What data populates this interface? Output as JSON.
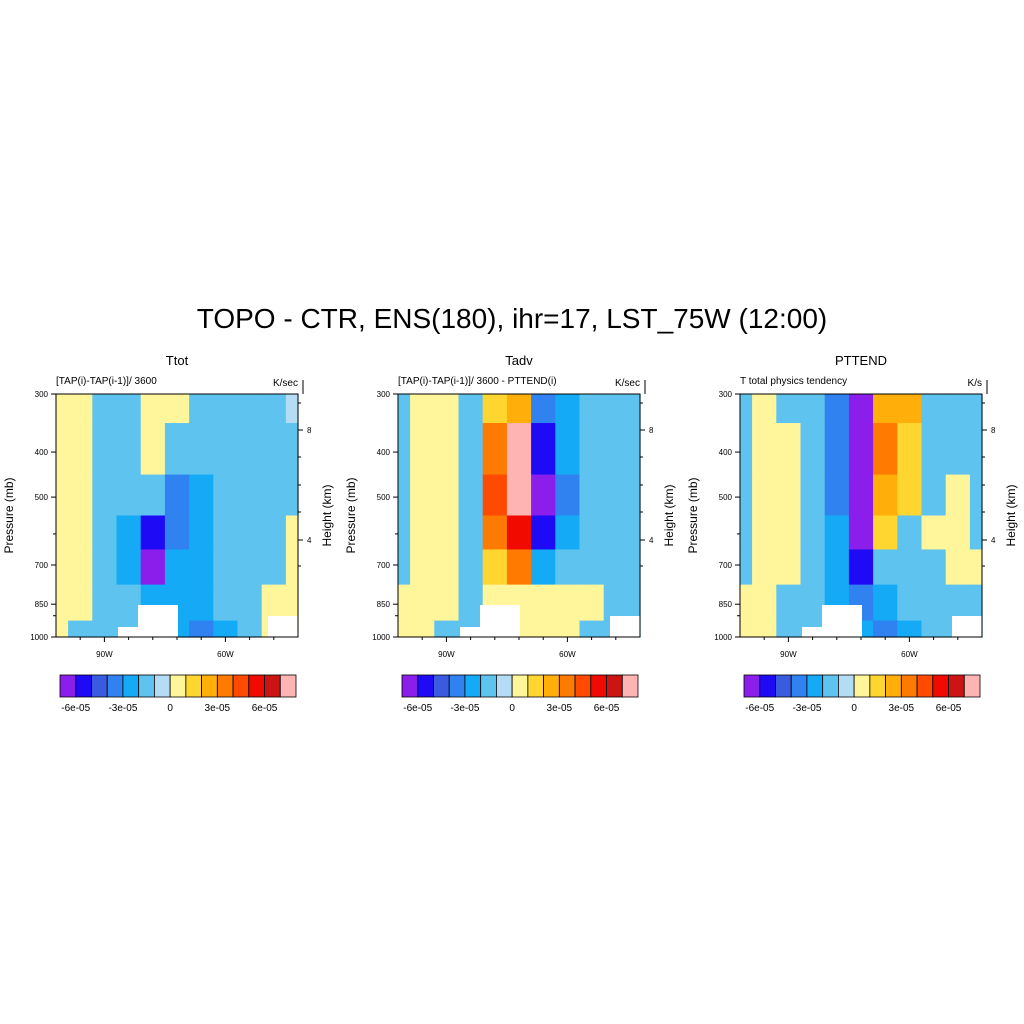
{
  "title": "TOPO - CTR, ENS(180), ihr=17, LST_75W (12:00)",
  "colors": [
    "#8B1EEB",
    "#1E0AF5",
    "#3A5AE0",
    "#2F82F0",
    "#14AAF5",
    "#5FC3F0",
    "#B4DCF5",
    "#FFF59B",
    "#FFD530",
    "#FFAE0A",
    "#FF7A00",
    "#FF4A00",
    "#F00A00",
    "#CD1414",
    "#FFB4B4"
  ],
  "colorbar": {
    "levels": [
      -6e-05,
      -5e-05,
      -4e-05,
      -3e-05,
      -2e-05,
      -1e-05,
      0,
      1e-05,
      2e-05,
      3e-05,
      4e-05,
      5e-05,
      6e-05,
      7e-05
    ],
    "tick_labels": [
      "-6e-05",
      "-3e-05",
      "0",
      "3e-05",
      "6e-05"
    ]
  },
  "chart_data": [
    {
      "type": "heatmap",
      "title": "Ttot",
      "left_subtitle": "[TAP(i)-TAP(i-1)]/ 3600",
      "units": "K/sec",
      "ylabel": "Pressure (mb)",
      "y2label": "Height (km)",
      "xlim_lon": [
        -102,
        -42
      ],
      "xticks": [
        "90W",
        "60W"
      ],
      "yticks": [
        "300",
        "400",
        "500",
        "700",
        "850",
        "1000"
      ],
      "y2ticks": [
        "8",
        "4"
      ],
      "x_lon": [
        -102,
        -96,
        -90,
        -84,
        -78,
        -72,
        -66,
        -60,
        -54,
        -48,
        -42
      ],
      "pressure": [
        300,
        400,
        500,
        600,
        700,
        850,
        1000
      ],
      "values": [
        [
          1,
          1,
          -1,
          -1,
          1,
          1,
          -1,
          -1,
          -1,
          -1,
          0
        ],
        [
          1,
          1,
          -1,
          -1,
          1,
          -1,
          -1,
          -1,
          -1,
          -1,
          -1
        ],
        [
          1,
          1,
          -1,
          -1,
          -1,
          -3,
          -2,
          -1,
          -1,
          -1,
          -1
        ],
        [
          1,
          1,
          -1,
          -2,
          -5,
          -3,
          -2,
          -1,
          -1,
          -1,
          1
        ],
        [
          1,
          1,
          -1,
          -2,
          -6,
          -2,
          -2,
          -1,
          -1,
          -1,
          1
        ],
        [
          1,
          1,
          -1,
          -1,
          -2,
          -2,
          -2,
          -1,
          -1,
          1,
          1
        ],
        [
          1,
          -1,
          -1,
          -1,
          -2,
          -2,
          -3,
          -2,
          -1,
          1,
          1
        ]
      ]
    },
    {
      "type": "heatmap",
      "title": "Tadv",
      "left_subtitle": "[TAP(i)-TAP(i-1)]/ 3600 - PTTEND(i)",
      "units": "K/sec",
      "ylabel": "Pressure (mb)",
      "y2label": "Height (km)",
      "xlim_lon": [
        -102,
        -42
      ],
      "xticks": [
        "90W",
        "60W"
      ],
      "yticks": [
        "300",
        "400",
        "500",
        "700",
        "850",
        "1000"
      ],
      "y2ticks": [
        "8",
        "4"
      ],
      "x_lon": [
        -102,
        -96,
        -90,
        -84,
        -78,
        -72,
        -66,
        -60,
        -54,
        -48,
        -42
      ],
      "pressure": [
        300,
        400,
        500,
        600,
        700,
        850,
        1000
      ],
      "values": [
        [
          -1,
          1,
          1,
          -1,
          2,
          3,
          -3,
          -2,
          -1,
          -1,
          -1
        ],
        [
          -1,
          1,
          1,
          -1,
          4,
          7,
          -5,
          -2,
          -1,
          -1,
          -1
        ],
        [
          -1,
          1,
          1,
          -1,
          5,
          7,
          -6,
          -3,
          -1,
          -1,
          -1
        ],
        [
          -1,
          1,
          1,
          -1,
          4,
          6,
          -5,
          -2,
          -1,
          -1,
          -1
        ],
        [
          -1,
          1,
          1,
          -1,
          2,
          4,
          -2,
          -1,
          -1,
          -1,
          -1
        ],
        [
          1,
          1,
          1,
          -1,
          1,
          1,
          1,
          1,
          1,
          -1,
          -1
        ],
        [
          1,
          1,
          -1,
          -1,
          1,
          1,
          1,
          1,
          -1,
          -1,
          -1
        ]
      ]
    },
    {
      "type": "heatmap",
      "title": "PTTEND",
      "left_subtitle": "T total physics tendency",
      "units": "K/s",
      "ylabel": "Pressure (mb)",
      "y2label": "Height (km)",
      "xlim_lon": [
        -102,
        -42
      ],
      "xticks": [
        "90W",
        "60W"
      ],
      "yticks": [
        "300",
        "400",
        "500",
        "700",
        "850",
        "1000"
      ],
      "y2ticks": [
        "8",
        "4"
      ],
      "x_lon": [
        -102,
        -96,
        -90,
        -84,
        -78,
        -72,
        -66,
        -60,
        -54,
        -48,
        -42
      ],
      "pressure": [
        300,
        400,
        500,
        600,
        700,
        850,
        1000
      ],
      "values": [
        [
          -1,
          1,
          -1,
          -1,
          -3,
          -6,
          3,
          3,
          -1,
          -1,
          -1
        ],
        [
          -1,
          1,
          1,
          -1,
          -3,
          -6,
          4,
          2,
          -1,
          -1,
          -1
        ],
        [
          -1,
          1,
          1,
          -1,
          -3,
          -6,
          3,
          2,
          -1,
          1,
          -1
        ],
        [
          -1,
          1,
          1,
          -1,
          -2,
          -6,
          2,
          -1,
          1,
          1,
          -1
        ],
        [
          -1,
          1,
          1,
          -1,
          -2,
          -5,
          -1,
          -1,
          -1,
          1,
          1
        ],
        [
          1,
          1,
          -1,
          -1,
          -2,
          -3,
          -2,
          -1,
          -1,
          -1,
          -1
        ],
        [
          1,
          1,
          -1,
          -1,
          -2,
          -2,
          -3,
          -2,
          -1,
          -1,
          -1
        ]
      ]
    }
  ]
}
